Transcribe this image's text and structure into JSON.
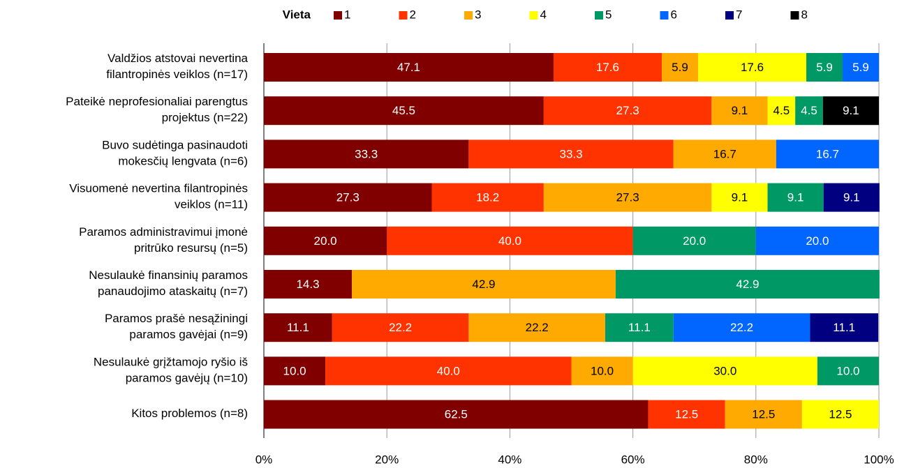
{
  "chart_data": {
    "type": "stacked_barh",
    "legend_title": "Vieta",
    "categories": [
      "Valdžios atstovai nevertina\nfilantropinės veiklos (n=17)",
      "Pateikė neprofesionaliai parengtus\nprojektus (n=22)",
      "Buvo sudėtinga pasinaudoti\nmokesčių lengvata (n=6)",
      "Visuomenė nevertina filantropinės\nveiklos (n=11)",
      "Paramos administravimui įmonė\npritrūko resursų (n=5)",
      "Nesulaukė finansinių paramos\npanaudojimo ataskaitų (n=7)",
      "Paramos prašė nesąžiningi\nparamos gavėjai (n=9)",
      "Nesulaukė grįžtamojo ryšio iš\nparamos gavėjų (n=10)",
      "Kitos problemos (n=8)"
    ],
    "series": [
      {
        "name": "1",
        "color": "#800000",
        "values": [
          47.1,
          45.5,
          33.3,
          27.3,
          20,
          14.3,
          11.1,
          10,
          62.5
        ],
        "value_labels": [
          "47.1",
          "45.5",
          "33.3",
          "27.3",
          "20.0",
          "14.3",
          "11.1",
          "10.0",
          "62.5"
        ]
      },
      {
        "name": "2",
        "color": "#ff3300",
        "values": [
          17.6,
          27.3,
          33.3,
          18.2,
          40,
          null,
          22.2,
          40,
          12.5
        ],
        "value_labels": [
          "17.6",
          "27.3",
          "33.3",
          "18.2",
          "40.0",
          null,
          "22.2",
          "40.0",
          "12.5"
        ]
      },
      {
        "name": "3",
        "color": "#ffaa00",
        "values": [
          5.9,
          9.1,
          16.7,
          27.3,
          null,
          42.9,
          22.2,
          10,
          12.5
        ],
        "value_labels": [
          "5.9",
          "9.1",
          "16.7",
          "27.3",
          null,
          "42.9",
          "22.2",
          "10.0",
          "12.5"
        ]
      },
      {
        "name": "4",
        "color": "#ffff00",
        "values": [
          17.6,
          4.5,
          null,
          9.1,
          null,
          null,
          null,
          30,
          12.5
        ],
        "value_labels": [
          "17.6",
          "4.5",
          null,
          "9.1",
          null,
          null,
          null,
          "30.0",
          "12.5"
        ]
      },
      {
        "name": "5",
        "color": "#009966",
        "values": [
          5.9,
          4.5,
          null,
          9.1,
          20,
          42.9,
          11.1,
          10,
          null
        ],
        "value_labels": [
          "5.9",
          "4.5",
          null,
          "9.1",
          "20.0",
          "42.9",
          "11.1",
          "10.0",
          null
        ]
      },
      {
        "name": "6",
        "color": "#0066ff",
        "values": [
          5.9,
          null,
          16.7,
          null,
          20,
          null,
          22.2,
          null,
          null
        ],
        "value_labels": [
          "5.9",
          null,
          "16.7",
          null,
          "20.0",
          null,
          "22.2",
          null,
          null
        ]
      },
      {
        "name": "7",
        "color": "#000080",
        "values": [
          null,
          null,
          null,
          9.1,
          null,
          null,
          11.1,
          null,
          null
        ],
        "value_labels": [
          null,
          null,
          null,
          "9.1",
          null,
          null,
          "11.1",
          null,
          null
        ]
      },
      {
        "name": "8",
        "color": "#000000",
        "values": [
          null,
          9.1,
          null,
          null,
          null,
          null,
          null,
          null,
          null
        ],
        "value_labels": [
          null,
          "9.1",
          null,
          null,
          null,
          null,
          null,
          null,
          null
        ]
      }
    ],
    "xlim": [
      0,
      100
    ],
    "xticks": [
      {
        "value": 0,
        "label": "0%"
      },
      {
        "value": 20,
        "label": "20%"
      },
      {
        "value": 40,
        "label": "40%"
      },
      {
        "value": 60,
        "label": "60%"
      },
      {
        "value": 80,
        "label": "80%"
      },
      {
        "value": 100,
        "label": "100%"
      }
    ],
    "legend": "top"
  }
}
